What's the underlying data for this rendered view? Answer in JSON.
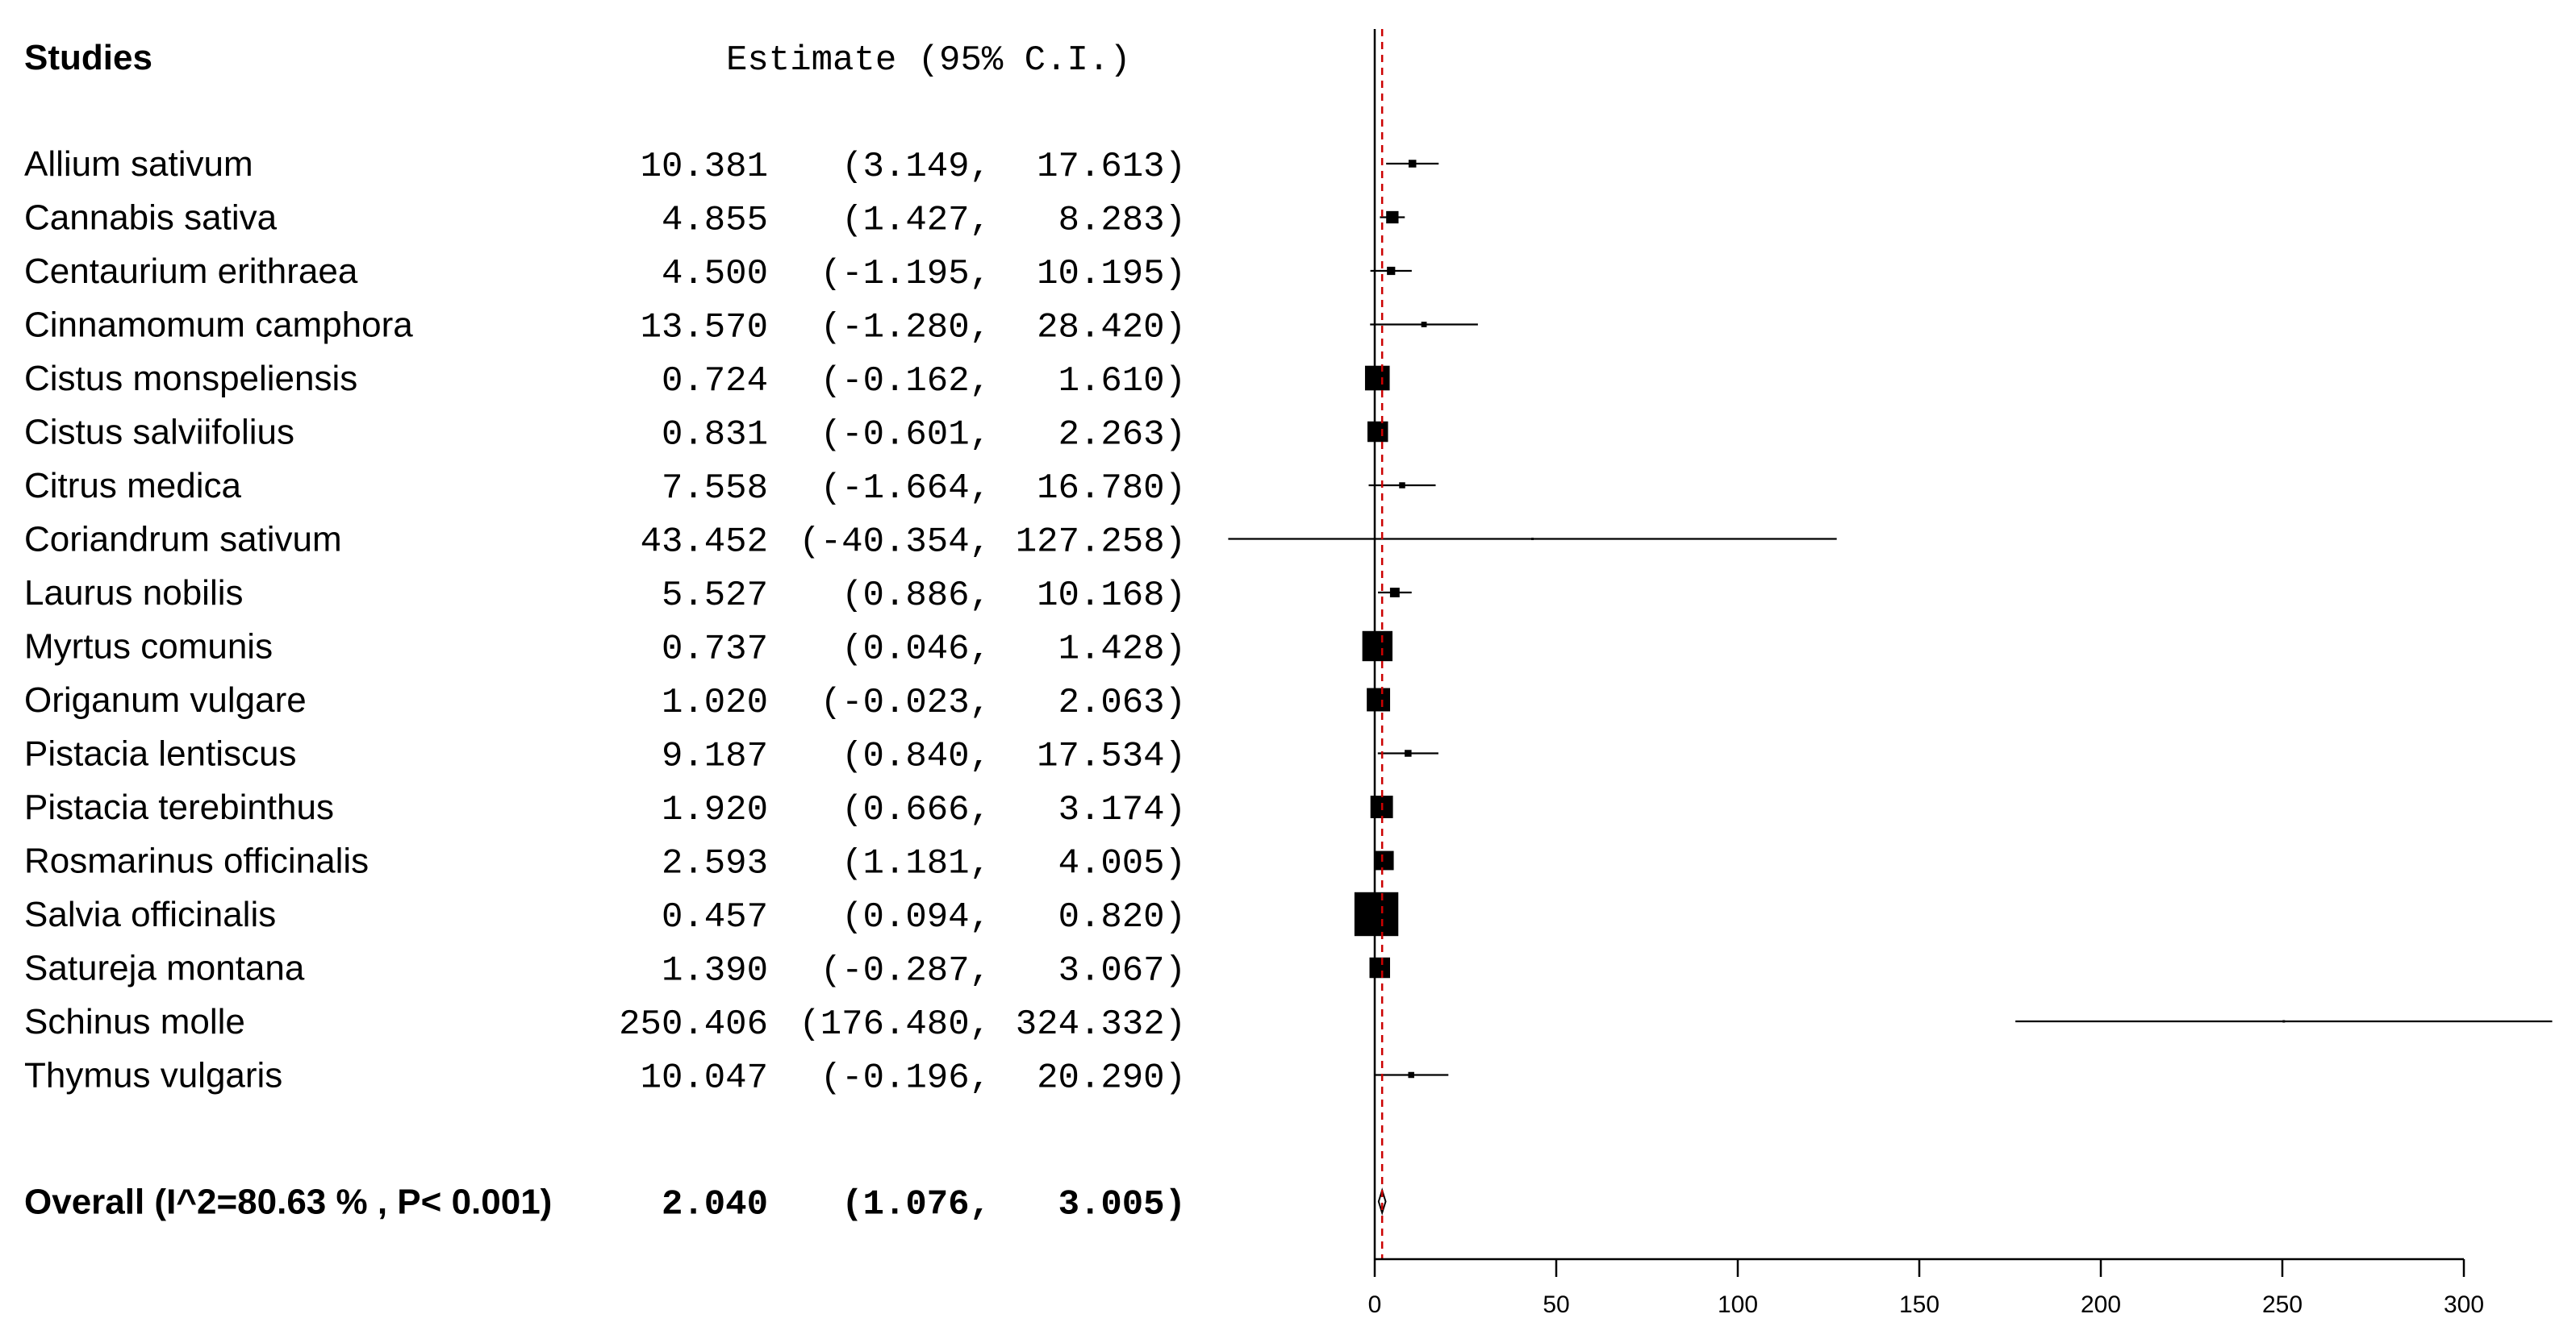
{
  "header": {
    "studies_label": "Studies",
    "estimate_label": "Estimate (95% C.I.)"
  },
  "overall": {
    "label": "Overall (I^2=80.63 % , P< 0.001)",
    "est": "2.040",
    "lo": "(1.076,",
    "hi": "3.005)"
  },
  "chart_data": {
    "type": "forest",
    "x_ticks": [
      0,
      50,
      100,
      150,
      200,
      250,
      300
    ],
    "xlim": [
      0,
      300
    ],
    "reference_line": 0,
    "pooled_line": 2.04,
    "colors": {
      "pooled_line": "#cc0000",
      "marks": "#000000"
    },
    "studies": [
      {
        "name": "Allium sativum",
        "est": 10.381,
        "lo": 3.149,
        "hi": 17.613,
        "est_text": "10.381",
        "lo_text": "(3.149,",
        "hi_text": "17.613)",
        "box": 0.28
      },
      {
        "name": "Cannabis sativa",
        "est": 4.855,
        "lo": 1.427,
        "hi": 8.283,
        "est_text": "4.855",
        "lo_text": "(1.427,",
        "hi_text": "8.283)",
        "box": 0.45
      },
      {
        "name": "Centaurium erithraea",
        "est": 4.5,
        "lo": -1.195,
        "hi": 10.195,
        "est_text": "4.500",
        "lo_text": "(-1.195,",
        "hi_text": "10.195)",
        "box": 0.3
      },
      {
        "name": "Cinnamomum camphora",
        "est": 13.57,
        "lo": -1.28,
        "hi": 28.42,
        "est_text": "13.570",
        "lo_text": "(-1.280,",
        "hi_text": "28.420)",
        "box": 0.2
      },
      {
        "name": "Cistus monspeliensis",
        "est": 0.724,
        "lo": -0.162,
        "hi": 1.61,
        "est_text": "0.724",
        "lo_text": "(-0.162,",
        "hi_text": "1.610)",
        "box": 0.9
      },
      {
        "name": "Cistus salviifolius",
        "est": 0.831,
        "lo": -0.601,
        "hi": 2.263,
        "est_text": "0.831",
        "lo_text": "(-0.601,",
        "hi_text": "2.263)",
        "box": 0.75
      },
      {
        "name": "Citrus medica",
        "est": 7.558,
        "lo": -1.664,
        "hi": 16.78,
        "est_text": "7.558",
        "lo_text": "(-1.664,",
        "hi_text": "16.780)",
        "box": 0.22
      },
      {
        "name": "Coriandrum sativum",
        "est": 43.452,
        "lo": -40.354,
        "hi": 127.258,
        "est_text": "43.452",
        "lo_text": "(-40.354,",
        "hi_text": "127.258)",
        "box": 0.04
      },
      {
        "name": "Laurus nobilis",
        "est": 5.527,
        "lo": 0.886,
        "hi": 10.168,
        "est_text": "5.527",
        "lo_text": "(0.886,",
        "hi_text": "10.168)",
        "box": 0.35
      },
      {
        "name": "Myrtus comunis",
        "est": 0.737,
        "lo": 0.046,
        "hi": 1.428,
        "est_text": "0.737",
        "lo_text": "(0.046,",
        "hi_text": "1.428)",
        "box": 1.1
      },
      {
        "name": "Origanum vulgare",
        "est": 1.02,
        "lo": -0.023,
        "hi": 2.063,
        "est_text": "1.020",
        "lo_text": "(-0.023,",
        "hi_text": "2.063)",
        "box": 0.85
      },
      {
        "name": "Pistacia lentiscus",
        "est": 9.187,
        "lo": 0.84,
        "hi": 17.534,
        "est_text": "9.187",
        "lo_text": "(0.840,",
        "hi_text": "17.534)",
        "box": 0.25
      },
      {
        "name": "Pistacia terebinthus",
        "est": 1.92,
        "lo": 0.666,
        "hi": 3.174,
        "est_text": "1.920",
        "lo_text": "(0.666,",
        "hi_text": "3.174)",
        "box": 0.82
      },
      {
        "name": "Rosmarinus officinalis",
        "est": 2.593,
        "lo": 1.181,
        "hi": 4.005,
        "est_text": "2.593",
        "lo_text": "(1.181,",
        "hi_text": "4.005)",
        "box": 0.7
      },
      {
        "name": "Salvia officinalis",
        "est": 0.457,
        "lo": 0.094,
        "hi": 0.82,
        "est_text": "0.457",
        "lo_text": "(0.094,",
        "hi_text": "0.820)",
        "box": 1.6
      },
      {
        "name": "Satureja montana",
        "est": 1.39,
        "lo": -0.287,
        "hi": 3.067,
        "est_text": "1.390",
        "lo_text": "(-0.287,",
        "hi_text": "3.067)",
        "box": 0.75
      },
      {
        "name": "Schinus molle",
        "est": 250.406,
        "lo": 176.48,
        "hi": 324.332,
        "est_text": "250.406",
        "lo_text": "(176.480,",
        "hi_text": "324.332)",
        "box": 0.04
      },
      {
        "name": "Thymus vulgaris",
        "est": 10.047,
        "lo": -0.196,
        "hi": 20.29,
        "est_text": "10.047",
        "lo_text": "(-0.196,",
        "hi_text": "20.290)",
        "box": 0.22
      }
    ],
    "pooled": {
      "est": 2.04,
      "lo": 1.076,
      "hi": 3.005
    }
  }
}
